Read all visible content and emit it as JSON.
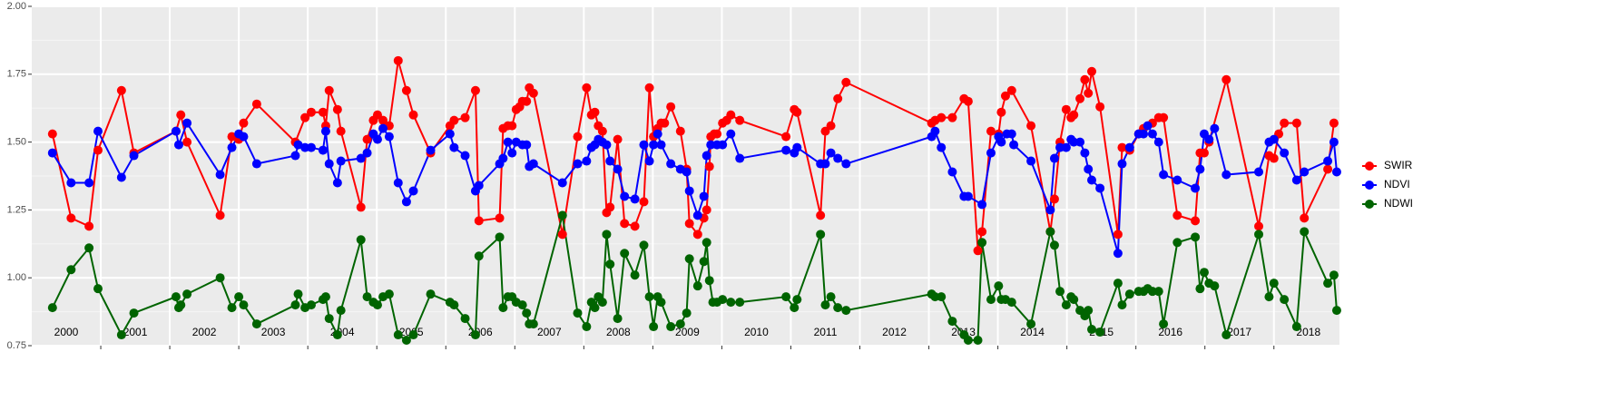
{
  "chart_data": {
    "type": "line",
    "xlim": [
      2000,
      2018.95
    ],
    "ylim": [
      0.75,
      2.0
    ],
    "yticks": [
      {
        "value": 0.75,
        "label": "0.75"
      },
      {
        "value": 1.0,
        "label": "1.00"
      },
      {
        "value": 1.25,
        "label": "1.25"
      },
      {
        "value": 1.5,
        "label": "1.50"
      },
      {
        "value": 1.75,
        "label": "1.75"
      },
      {
        "value": 2.0,
        "label": "2.00"
      }
    ],
    "xgrid": [
      2001,
      2002,
      2003,
      2004,
      2005,
      2006,
      2007,
      2008,
      2009,
      2010,
      2011,
      2012,
      2013,
      2014,
      2015,
      2016,
      2017,
      2018
    ],
    "year_labels": [
      {
        "value": 2000.5,
        "label": "2000"
      },
      {
        "value": 2001.5,
        "label": "2001"
      },
      {
        "value": 2002.5,
        "label": "2002"
      },
      {
        "value": 2003.5,
        "label": "2003"
      },
      {
        "value": 2004.5,
        "label": "2004"
      },
      {
        "value": 2005.5,
        "label": "2005"
      },
      {
        "value": 2006.5,
        "label": "2006"
      },
      {
        "value": 2007.5,
        "label": "2007"
      },
      {
        "value": 2008.5,
        "label": "2008"
      },
      {
        "value": 2009.5,
        "label": "2009"
      },
      {
        "value": 2010.5,
        "label": "2010"
      },
      {
        "value": 2011.5,
        "label": "2011"
      },
      {
        "value": 2012.5,
        "label": "2012"
      },
      {
        "value": 2013.5,
        "label": "2013"
      },
      {
        "value": 2014.5,
        "label": "2014"
      },
      {
        "value": 2015.5,
        "label": "2015"
      },
      {
        "value": 2016.5,
        "label": "2016"
      },
      {
        "value": 2017.5,
        "label": "2017"
      },
      {
        "value": 2018.5,
        "label": "2018"
      }
    ],
    "grid": true,
    "legend": "right",
    "series": [
      {
        "name": "SWIR",
        "color": "#ff0000",
        "x": [
          2000.3,
          2000.57,
          2000.83,
          2000.96,
          2001.3,
          2001.48,
          2002.09,
          2002.16,
          2002.25,
          2002.73,
          2002.9,
          2003.0,
          2003.07,
          2003.26,
          2003.82,
          2003.96,
          2004.05,
          2004.22,
          2004.26,
          2004.31,
          2004.43,
          2004.48,
          2004.77,
          2004.86,
          2004.95,
          2005.01,
          2005.09,
          2005.18,
          2005.31,
          2005.43,
          2005.53,
          2005.78,
          2006.06,
          2006.12,
          2006.28,
          2006.43,
          2006.48,
          2006.78,
          2006.83,
          2006.9,
          2006.96,
          2007.02,
          2007.07,
          2007.11,
          2007.17,
          2007.21,
          2007.27,
          2007.69,
          2007.91,
          2008.04,
          2008.11,
          2008.16,
          2008.21,
          2008.27,
          2008.33,
          2008.38,
          2008.49,
          2008.59,
          2008.74,
          2008.87,
          2008.95,
          2009.01,
          2009.07,
          2009.12,
          2009.17,
          2009.26,
          2009.4,
          2009.49,
          2009.53,
          2009.65,
          2009.74,
          2009.78,
          2009.82,
          2009.84,
          2009.89,
          2009.93,
          2010.01,
          2010.07,
          2010.13,
          2010.26,
          2010.93,
          2011.05,
          2011.09,
          2011.43,
          2011.5,
          2011.58,
          2011.68,
          2011.8,
          2013.04,
          2013.09,
          2013.18,
          2013.34,
          2013.51,
          2013.57,
          2013.71,
          2013.77,
          2013.9,
          2014.01,
          2014.05,
          2014.11,
          2014.2,
          2014.48,
          2014.76,
          2014.82,
          2014.9,
          2014.99,
          2015.06,
          2015.1,
          2015.19,
          2015.26,
          2015.31,
          2015.36,
          2015.48,
          2015.74,
          2015.8,
          2015.91,
          2016.04,
          2016.11,
          2016.24,
          2016.33,
          2016.4,
          2016.6,
          2016.86,
          2016.93,
          2016.99,
          2017.06,
          2017.31,
          2017.78,
          2017.93,
          2018.0,
          2018.07,
          2018.15,
          2018.33,
          2018.44,
          2018.78,
          2018.87
        ],
        "values": [
          1.53,
          1.22,
          1.19,
          1.47,
          1.69,
          1.46,
          1.54,
          1.6,
          1.5,
          1.23,
          1.52,
          1.51,
          1.57,
          1.64,
          1.5,
          1.59,
          1.61,
          1.61,
          1.56,
          1.69,
          1.62,
          1.54,
          1.26,
          1.51,
          1.58,
          1.6,
          1.58,
          1.56,
          1.8,
          1.69,
          1.6,
          1.46,
          1.56,
          1.58,
          1.59,
          1.69,
          1.21,
          1.22,
          1.55,
          1.56,
          1.56,
          1.62,
          1.63,
          1.65,
          1.65,
          1.7,
          1.68,
          1.16,
          1.52,
          1.7,
          1.6,
          1.61,
          1.56,
          1.54,
          1.24,
          1.26,
          1.51,
          1.2,
          1.19,
          1.28,
          1.7,
          1.52,
          1.55,
          1.57,
          1.57,
          1.63,
          1.54,
          1.4,
          1.2,
          1.16,
          1.22,
          1.25,
          1.41,
          1.52,
          1.53,
          1.53,
          1.57,
          1.58,
          1.6,
          1.58,
          1.52,
          1.62,
          1.61,
          1.23,
          1.54,
          1.56,
          1.66,
          1.72,
          1.57,
          1.58,
          1.59,
          1.59,
          1.66,
          1.65,
          1.1,
          1.17,
          1.54,
          1.53,
          1.61,
          1.67,
          1.69,
          1.56,
          1.17,
          1.29,
          1.5,
          1.62,
          1.59,
          1.6,
          1.66,
          1.73,
          1.68,
          1.76,
          1.63,
          1.16,
          1.48,
          1.47,
          1.53,
          1.55,
          1.57,
          1.59,
          1.59,
          1.23,
          1.21,
          1.46,
          1.46,
          1.5,
          1.73,
          1.19,
          1.45,
          1.44,
          1.53,
          1.57,
          1.57,
          1.22,
          1.4,
          1.57
        ]
      },
      {
        "name": "NDVI",
        "color": "#0000ff",
        "x": [
          2000.3,
          2000.57,
          2000.83,
          2000.96,
          2001.3,
          2001.48,
          2002.09,
          2002.13,
          2002.25,
          2002.73,
          2002.9,
          2003.0,
          2003.07,
          2003.26,
          2003.82,
          2003.86,
          2003.96,
          2004.05,
          2004.22,
          2004.26,
          2004.31,
          2004.43,
          2004.48,
          2004.77,
          2004.86,
          2004.95,
          2005.01,
          2005.09,
          2005.18,
          2005.31,
          2005.43,
          2005.53,
          2005.78,
          2006.06,
          2006.12,
          2006.28,
          2006.43,
          2006.48,
          2006.78,
          2006.83,
          2006.9,
          2006.96,
          2007.02,
          2007.11,
          2007.17,
          2007.21,
          2007.27,
          2007.69,
          2007.91,
          2008.04,
          2008.11,
          2008.16,
          2008.21,
          2008.27,
          2008.33,
          2008.38,
          2008.49,
          2008.59,
          2008.74,
          2008.87,
          2008.95,
          2009.01,
          2009.07,
          2009.12,
          2009.26,
          2009.4,
          2009.49,
          2009.53,
          2009.65,
          2009.74,
          2009.78,
          2009.84,
          2009.93,
          2010.01,
          2010.13,
          2010.26,
          2010.93,
          2011.05,
          2011.09,
          2011.43,
          2011.5,
          2011.58,
          2011.68,
          2011.8,
          2013.04,
          2013.09,
          2013.18,
          2013.34,
          2013.51,
          2013.57,
          2013.77,
          2013.9,
          2014.01,
          2014.05,
          2014.13,
          2014.2,
          2014.23,
          2014.48,
          2014.76,
          2014.82,
          2014.9,
          2014.99,
          2015.06,
          2015.1,
          2015.19,
          2015.26,
          2015.31,
          2015.36,
          2015.48,
          2015.74,
          2015.8,
          2015.91,
          2016.04,
          2016.11,
          2016.17,
          2016.24,
          2016.33,
          2016.4,
          2016.6,
          2016.86,
          2016.93,
          2016.99,
          2017.06,
          2017.14,
          2017.31,
          2017.78,
          2017.93,
          2018.0,
          2018.15,
          2018.33,
          2018.44,
          2018.78,
          2018.87,
          2018.91
        ],
        "values": [
          1.46,
          1.35,
          1.35,
          1.54,
          1.37,
          1.45,
          1.54,
          1.49,
          1.57,
          1.38,
          1.48,
          1.53,
          1.52,
          1.42,
          1.45,
          1.49,
          1.48,
          1.48,
          1.47,
          1.54,
          1.42,
          1.35,
          1.43,
          1.44,
          1.46,
          1.53,
          1.51,
          1.55,
          1.52,
          1.35,
          1.28,
          1.32,
          1.47,
          1.53,
          1.48,
          1.45,
          1.32,
          1.34,
          1.42,
          1.44,
          1.5,
          1.46,
          1.5,
          1.49,
          1.49,
          1.41,
          1.42,
          1.35,
          1.42,
          1.43,
          1.48,
          1.49,
          1.51,
          1.5,
          1.49,
          1.43,
          1.4,
          1.3,
          1.29,
          1.49,
          1.43,
          1.49,
          1.53,
          1.49,
          1.42,
          1.4,
          1.39,
          1.32,
          1.23,
          1.3,
          1.45,
          1.49,
          1.49,
          1.49,
          1.53,
          1.44,
          1.47,
          1.46,
          1.48,
          1.42,
          1.42,
          1.46,
          1.44,
          1.42,
          1.52,
          1.54,
          1.48,
          1.39,
          1.3,
          1.3,
          1.27,
          1.46,
          1.52,
          1.5,
          1.53,
          1.53,
          1.49,
          1.43,
          1.25,
          1.44,
          1.48,
          1.48,
          1.51,
          1.5,
          1.5,
          1.46,
          1.4,
          1.36,
          1.33,
          1.09,
          1.42,
          1.48,
          1.53,
          1.53,
          1.56,
          1.53,
          1.5,
          1.38,
          1.36,
          1.33,
          1.4,
          1.53,
          1.51,
          1.55,
          1.38,
          1.39,
          1.5,
          1.51,
          1.46,
          1.36,
          1.39,
          1.43,
          1.5,
          1.39
        ]
      },
      {
        "name": "NDWI",
        "color": "#006400",
        "x": [
          2000.3,
          2000.57,
          2000.83,
          2000.96,
          2001.3,
          2001.48,
          2002.09,
          2002.13,
          2002.16,
          2002.25,
          2002.73,
          2002.9,
          2003.0,
          2003.07,
          2003.26,
          2003.82,
          2003.86,
          2003.96,
          2004.05,
          2004.22,
          2004.26,
          2004.31,
          2004.43,
          2004.48,
          2004.77,
          2004.86,
          2004.95,
          2005.01,
          2005.09,
          2005.18,
          2005.31,
          2005.43,
          2005.53,
          2005.78,
          2006.06,
          2006.12,
          2006.28,
          2006.43,
          2006.48,
          2006.78,
          2006.83,
          2006.9,
          2006.96,
          2007.02,
          2007.11,
          2007.17,
          2007.21,
          2007.27,
          2007.69,
          2007.91,
          2008.04,
          2008.11,
          2008.16,
          2008.21,
          2008.27,
          2008.33,
          2008.38,
          2008.49,
          2008.59,
          2008.74,
          2008.87,
          2008.95,
          2009.01,
          2009.07,
          2009.12,
          2009.26,
          2009.4,
          2009.49,
          2009.53,
          2009.65,
          2009.74,
          2009.78,
          2009.82,
          2009.87,
          2009.93,
          2010.01,
          2010.13,
          2010.26,
          2010.93,
          2011.05,
          2011.09,
          2011.43,
          2011.5,
          2011.58,
          2011.68,
          2011.8,
          2013.04,
          2013.09,
          2013.18,
          2013.34,
          2013.51,
          2013.57,
          2013.71,
          2013.77,
          2013.9,
          2014.01,
          2014.05,
          2014.11,
          2014.2,
          2014.48,
          2014.76,
          2014.82,
          2014.9,
          2014.99,
          2015.06,
          2015.1,
          2015.19,
          2015.26,
          2015.31,
          2015.36,
          2015.48,
          2015.74,
          2015.8,
          2015.91,
          2016.04,
          2016.11,
          2016.17,
          2016.24,
          2016.33,
          2016.4,
          2016.6,
          2016.86,
          2016.93,
          2016.99,
          2017.06,
          2017.14,
          2017.31,
          2017.78,
          2017.93,
          2018.0,
          2018.15,
          2018.33,
          2018.44,
          2018.78,
          2018.87,
          2018.91
        ],
        "values": [
          0.89,
          1.03,
          1.11,
          0.96,
          0.79,
          0.87,
          0.93,
          0.89,
          0.9,
          0.94,
          1.0,
          0.89,
          0.93,
          0.9,
          0.83,
          0.9,
          0.94,
          0.89,
          0.9,
          0.92,
          0.93,
          0.85,
          0.79,
          0.88,
          1.14,
          0.93,
          0.91,
          0.9,
          0.93,
          0.94,
          0.79,
          0.77,
          0.79,
          0.94,
          0.91,
          0.9,
          0.85,
          0.79,
          1.08,
          1.15,
          0.89,
          0.93,
          0.93,
          0.91,
          0.9,
          0.87,
          0.83,
          0.83,
          1.23,
          0.87,
          0.82,
          0.91,
          0.89,
          0.93,
          0.91,
          1.16,
          1.05,
          0.85,
          1.09,
          1.01,
          1.12,
          0.93,
          0.82,
          0.93,
          0.91,
          0.82,
          0.83,
          0.87,
          1.07,
          0.97,
          1.06,
          1.13,
          0.99,
          0.91,
          0.91,
          0.92,
          0.91,
          0.91,
          0.93,
          0.89,
          0.92,
          1.16,
          0.9,
          0.93,
          0.89,
          0.88,
          0.94,
          0.93,
          0.93,
          0.84,
          0.79,
          0.77,
          0.77,
          1.13,
          0.92,
          0.97,
          0.92,
          0.92,
          0.91,
          0.83,
          1.17,
          1.12,
          0.95,
          0.9,
          0.93,
          0.92,
          0.88,
          0.86,
          0.88,
          0.81,
          0.8,
          0.98,
          0.9,
          0.94,
          0.95,
          0.95,
          0.96,
          0.95,
          0.95,
          0.83,
          1.13,
          1.15,
          0.96,
          1.02,
          0.98,
          0.97,
          0.79,
          1.16,
          0.93,
          0.98,
          0.92,
          0.82,
          1.17,
          0.98,
          1.01,
          0.88
        ]
      }
    ]
  }
}
